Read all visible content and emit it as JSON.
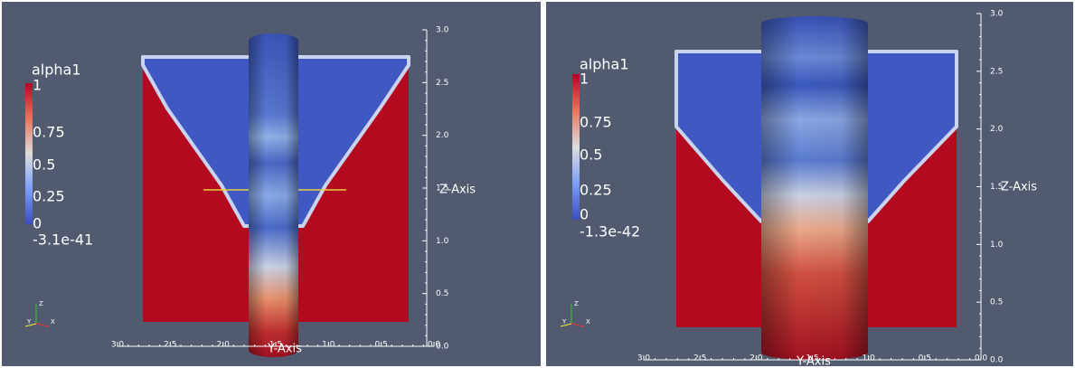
{
  "panels": [
    {
      "colorbar": {
        "title": "alpha1",
        "labels": [
          "1",
          "0.75",
          "0.5",
          "0.25",
          "0",
          "-3.1e-41"
        ]
      },
      "z_axis": {
        "title": "Z-Axis",
        "ticks": [
          "3.0",
          "2.5",
          "2.0",
          "1.5",
          "1.0",
          "0.5",
          "0.0"
        ]
      },
      "y_axis": {
        "title": "Y-Axis",
        "ticks": [
          "3.0",
          "2.5",
          "2.0",
          "1.5",
          "1.0",
          "0.5",
          "0.0"
        ]
      },
      "orientation_axes": {
        "labels": [
          "Z",
          "Y",
          "X"
        ]
      }
    },
    {
      "colorbar": {
        "title": "alpha1",
        "labels": [
          "1",
          "0.75",
          "0.5",
          "0.25",
          "0",
          "-1.3e-42"
        ]
      },
      "z_axis": {
        "title": "Z-Axis",
        "ticks": [
          "3.0",
          "2.5",
          "2.0",
          "1.5",
          "1.0",
          "0.5",
          "0.0"
        ]
      },
      "y_axis": {
        "title": "Y-Axis",
        "ticks": [
          "3.0",
          "2.5",
          "2.0",
          "1.5",
          "1.0",
          "0.5",
          "0.0"
        ]
      },
      "orientation_axes": {
        "labels": [
          "Z",
          "Y",
          "X"
        ]
      }
    }
  ]
}
